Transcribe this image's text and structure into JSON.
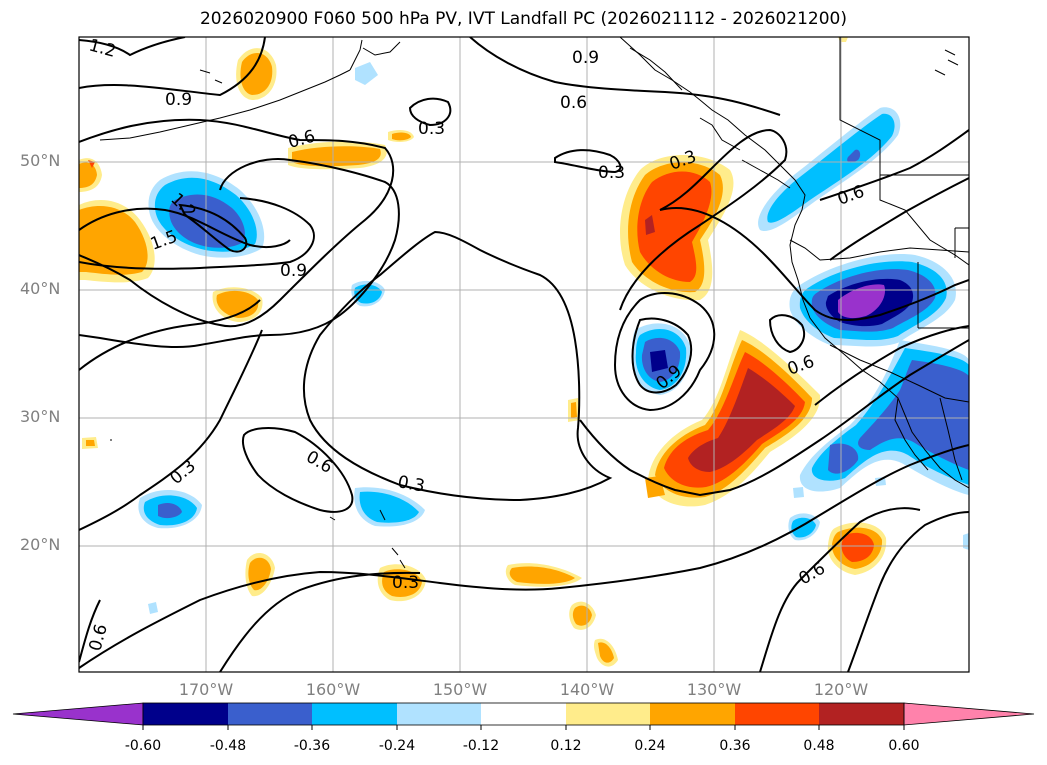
{
  "title": "2026020900 F060 500 hPa PV, IVT Landfall PC (2026021112 - 2026021200)",
  "lat_labels": [
    "50°N",
    "40°N",
    "30°N",
    "20°N"
  ],
  "lon_labels": [
    "170°W",
    "160°W",
    "150°W",
    "140°W",
    "130°W",
    "120°W"
  ],
  "contour_labels": [
    "1.2",
    "0.9",
    "0.6",
    "0.3",
    "0.9",
    "0.6",
    "0.3",
    "1.2",
    "1.5",
    "0.9",
    "0.3",
    "0.6",
    "0.9",
    "0.6",
    "0.3",
    "0.6",
    "0.3",
    "0.3",
    "0.6"
  ],
  "colorbar": {
    "ticks": [
      "-0.60",
      "-0.48",
      "-0.36",
      "-0.24",
      "-0.12",
      "0.12",
      "0.24",
      "0.36",
      "0.48",
      "0.60"
    ],
    "colors": [
      "#9932cc",
      "#00008b",
      "#3a5fcd",
      "#00bfff",
      "#b0e2ff",
      "#ffffff",
      "#ffec8b",
      "#ffa500",
      "#ff4500",
      "#b22222",
      "#ff82ab"
    ]
  },
  "colors": {
    "map_frame": "#000000",
    "grid": "#b0b0b0",
    "axis_label": "#808080"
  }
}
